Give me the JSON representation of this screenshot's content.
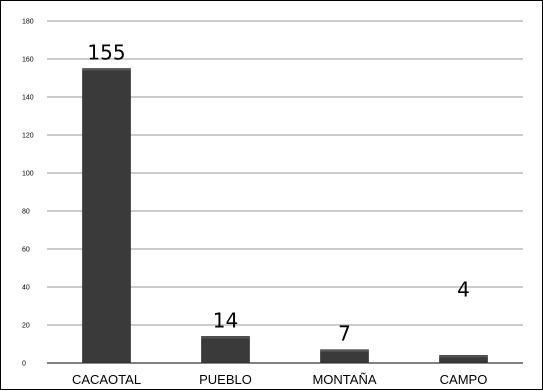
{
  "chart_data": {
    "type": "bar",
    "title": "",
    "xlabel": "",
    "ylabel": "",
    "categories": [
      "CACAOTAL",
      "PUEBLO",
      "MONTAÑA",
      "CAMPO"
    ],
    "values": [
      155,
      14,
      7,
      4
    ],
    "data_labels": [
      "155",
      "14",
      "7",
      "4"
    ],
    "ylim": [
      0,
      180
    ],
    "yticks": [
      0,
      20,
      40,
      60,
      80,
      100,
      120,
      140,
      160,
      180
    ],
    "grid": true,
    "legend": "none",
    "colors": {
      "bar": "#3a3a3a",
      "bar_top": "#555555",
      "grid": "#9a9a9a",
      "axis": "#000000"
    }
  }
}
